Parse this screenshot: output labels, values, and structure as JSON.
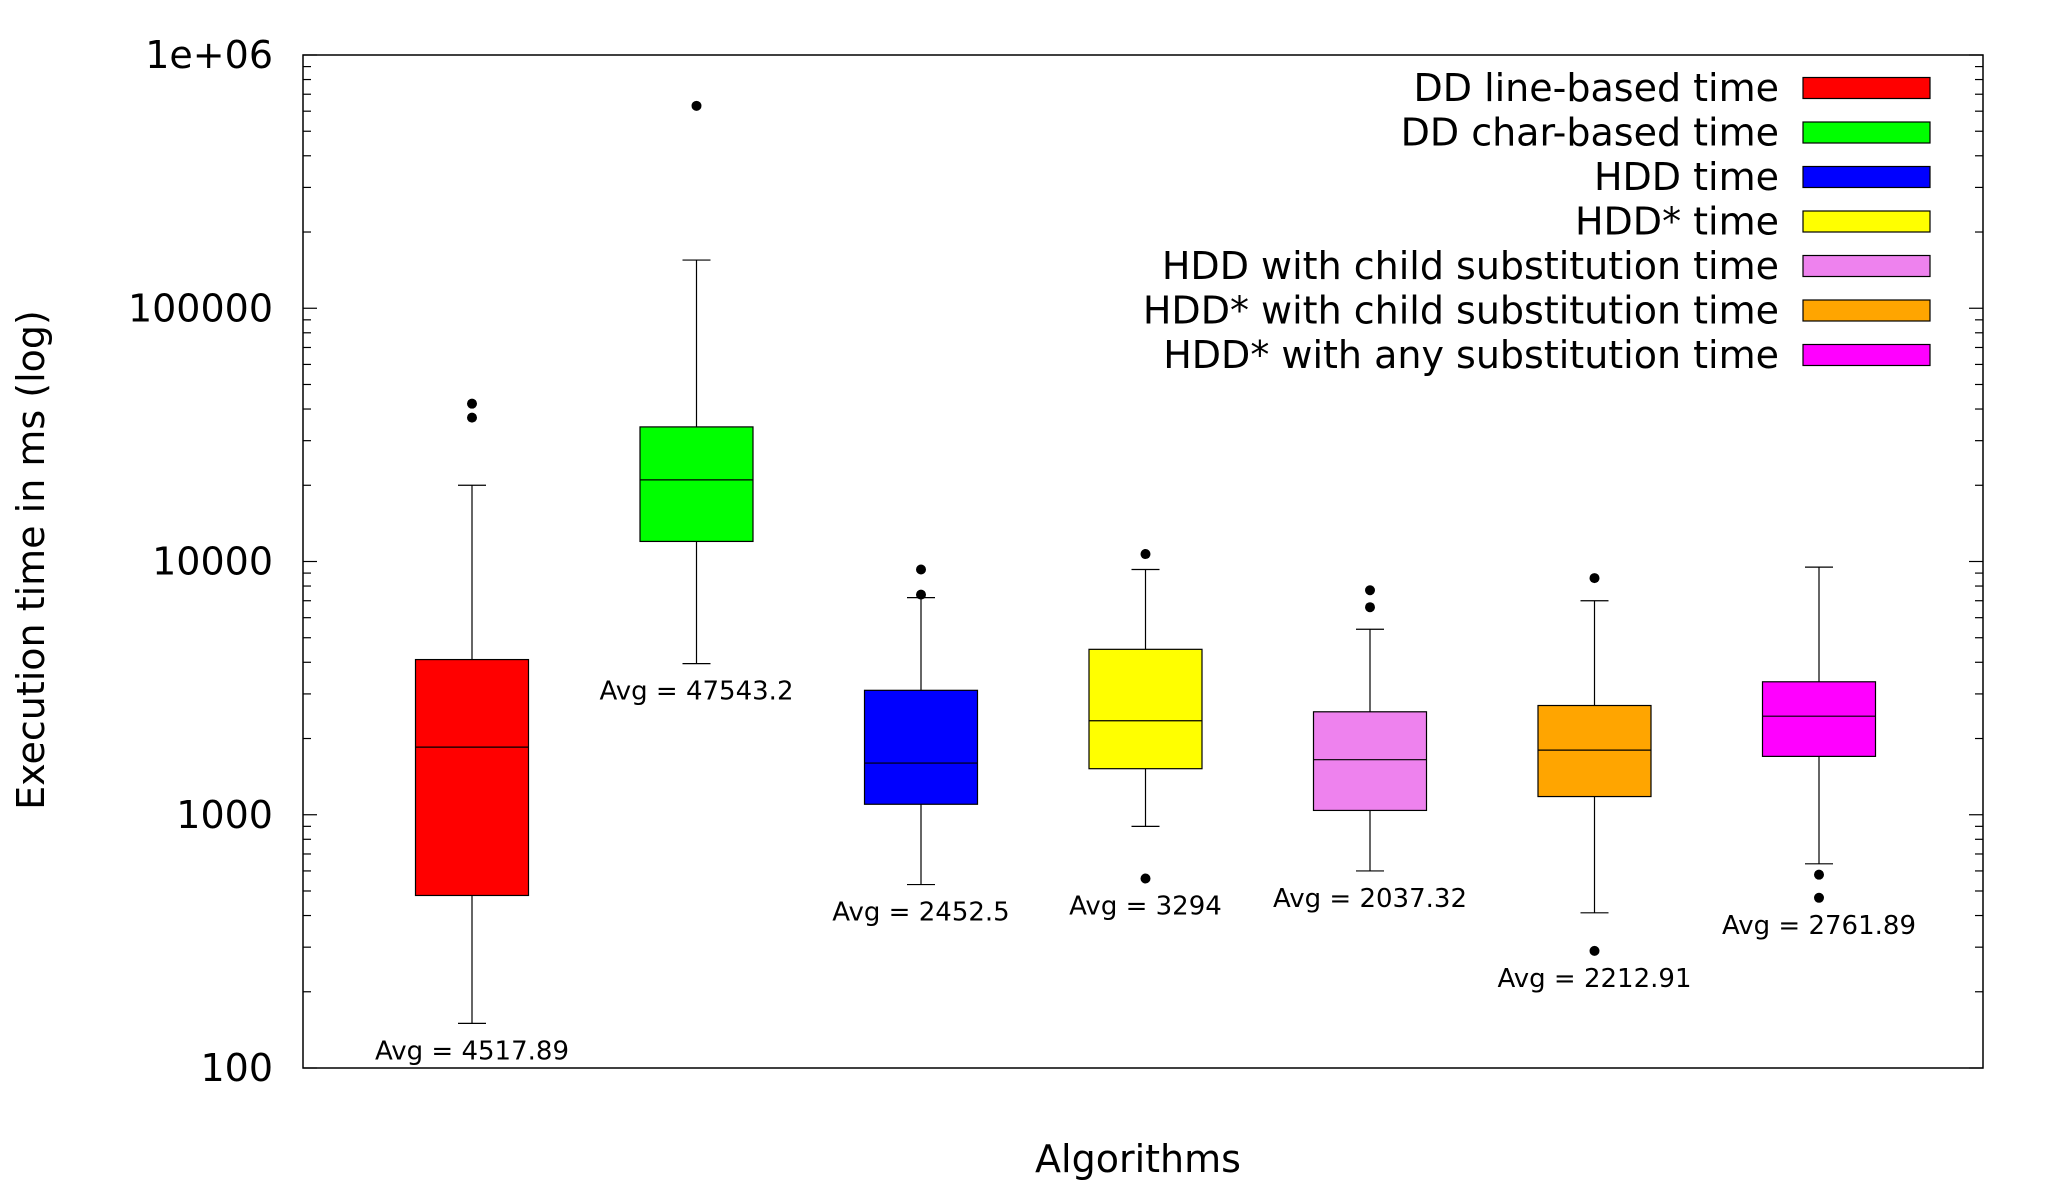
{
  "chart_data": {
    "type": "boxplot",
    "title": "",
    "xlabel": "Algorithms",
    "ylabel": "Execution time in ms (log)",
    "yscale": "log",
    "ylim": [
      100,
      1000000
    ],
    "yticks": [
      {
        "value": 100,
        "label": "100"
      },
      {
        "value": 1000,
        "label": "1000"
      },
      {
        "value": 10000,
        "label": "10000"
      },
      {
        "value": 100000,
        "label": "100000"
      },
      {
        "value": 1000000,
        "label": "1e+06"
      }
    ],
    "grid": false,
    "legend_position": "top-right",
    "series": [
      {
        "name": "DD line-based time",
        "color": "#ff0000",
        "whisker_low": 150,
        "q1": 480,
        "median": 1850,
        "q3": 4100,
        "whisker_high": 20000,
        "outliers": [
          37000,
          42000
        ],
        "avg_label": "Avg = 4517.89"
      },
      {
        "name": "DD char-based time",
        "color": "#00ff00",
        "whisker_low": 3950,
        "q1": 12000,
        "median": 21000,
        "q3": 34000,
        "whisker_high": 155000,
        "outliers": [
          630000
        ],
        "avg_label": "Avg = 47543.2"
      },
      {
        "name": "HDD time",
        "color": "#0000ff",
        "whisker_low": 530,
        "q1": 1100,
        "median": 1600,
        "q3": 3100,
        "whisker_high": 7200,
        "outliers": [
          7400,
          9300
        ],
        "avg_label": "Avg = 2452.5"
      },
      {
        "name": "HDD* time",
        "color": "#ffff00",
        "whisker_low": 900,
        "q1": 1520,
        "median": 2350,
        "q3": 4500,
        "whisker_high": 9300,
        "outliers": [
          560,
          10700
        ],
        "avg_label": "Avg = 3294"
      },
      {
        "name": "HDD with child substitution time",
        "color": "#ee82ee",
        "whisker_low": 600,
        "q1": 1040,
        "median": 1650,
        "q3": 2550,
        "whisker_high": 5400,
        "outliers": [
          6600,
          7700
        ],
        "avg_label": "Avg = 2037.32"
      },
      {
        "name": "HDD* with child substitution time",
        "color": "#ffa500",
        "whisker_low": 410,
        "q1": 1180,
        "median": 1800,
        "q3": 2700,
        "whisker_high": 7000,
        "outliers": [
          290,
          8600
        ],
        "avg_label": "Avg = 2212.91"
      },
      {
        "name": "HDD* with any substitution time",
        "color": "#ff00ff",
        "whisker_low": 640,
        "q1": 1700,
        "median": 2450,
        "q3": 3350,
        "whisker_high": 9500,
        "outliers": [
          470,
          580
        ],
        "avg_label": "Avg = 2761.89"
      }
    ]
  }
}
